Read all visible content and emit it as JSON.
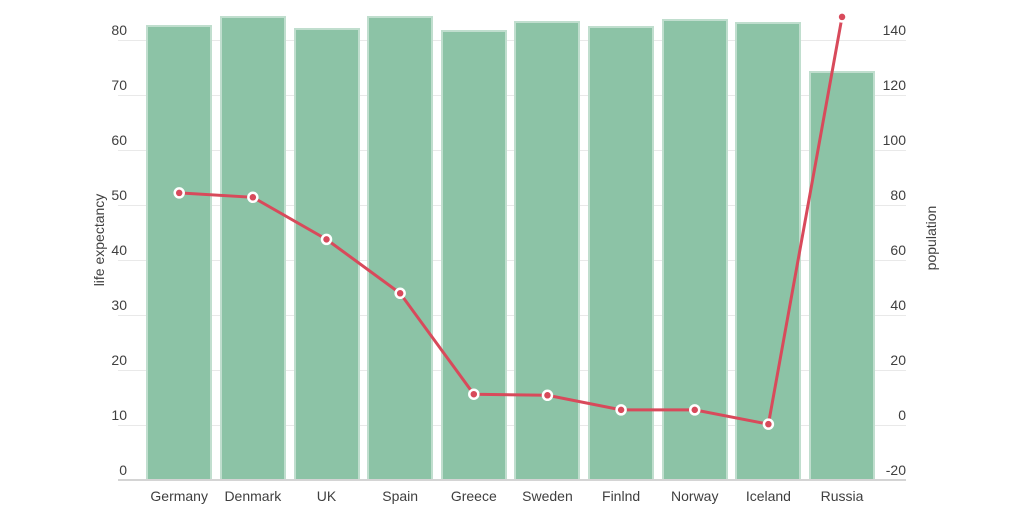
{
  "chart_data": {
    "type": "combo",
    "title": "",
    "categories": [
      "Germany",
      "Denmark",
      "UK",
      "Spain",
      "Greece",
      "Sweden",
      "Finlnd",
      "Norway",
      "Iceland",
      "Russia"
    ],
    "series": [
      {
        "name": "life expectancy",
        "type": "bar",
        "y_axis": "left",
        "color": "#8cc3a6",
        "values": [
          82.7,
          84.3,
          82.2,
          84.3,
          81.9,
          83.4,
          82.5,
          83.9,
          83.2,
          74.4
        ]
      },
      {
        "name": "population",
        "type": "line",
        "y_axis": "right",
        "color": "#d84a5b",
        "marker": "circle-white-ring",
        "values": [
          84.4,
          82.8,
          67.5,
          47.9,
          11.2,
          10.8,
          5.5,
          5.5,
          0.3,
          148.4
        ]
      }
    ],
    "left_axis": {
      "label": "life expectancy",
      "ticks": [
        0,
        10,
        20,
        30,
        40,
        50,
        60,
        70,
        80
      ],
      "range": [
        0,
        80
      ]
    },
    "right_axis": {
      "label": "population",
      "ticks": [
        -20,
        0,
        20,
        40,
        60,
        80,
        100,
        120,
        140
      ],
      "range": [
        -20,
        140
      ]
    },
    "grid": true,
    "legend_position": "none",
    "background": "#ffffff",
    "colors": {
      "bar": "#8cc3a6",
      "bar_rim": "rgba(255,255,255,0.45)",
      "line": "#d84a5b",
      "marker_ring": "#ffffff",
      "gridline": "#e9e9e9",
      "baseline": "#d4d4d4",
      "text": "#3f3f3f"
    }
  }
}
